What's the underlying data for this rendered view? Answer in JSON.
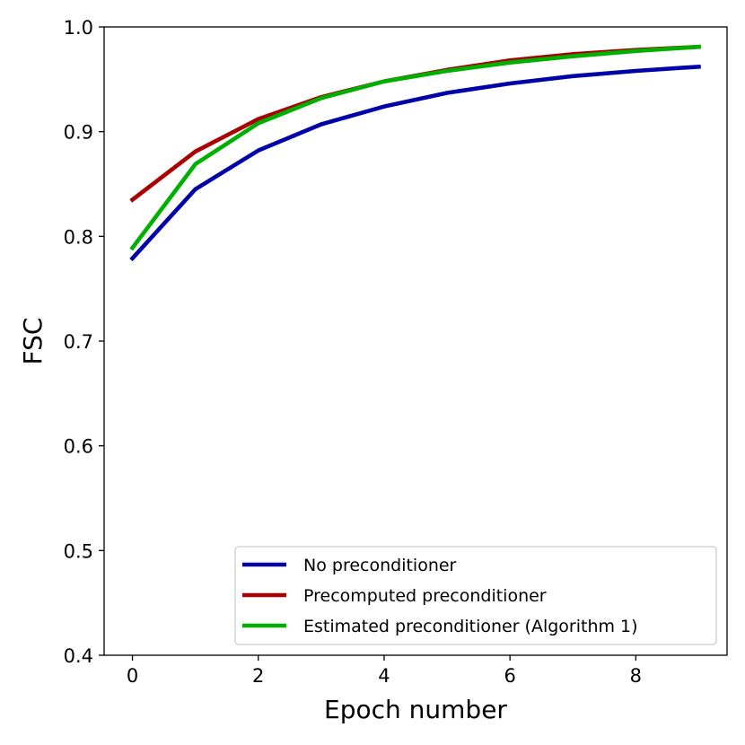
{
  "chart_data": {
    "type": "line",
    "title": "",
    "xlabel": "Epoch number",
    "ylabel": "FSC",
    "xlim": [
      -0.45,
      9.45
    ],
    "ylim": [
      0.4,
      1.0
    ],
    "xticks": [
      0,
      2,
      4,
      6,
      8
    ],
    "xtick_labels": [
      "0",
      "2",
      "4",
      "6",
      "8"
    ],
    "yticks": [
      0.4,
      0.5,
      0.6,
      0.7,
      0.8,
      0.9,
      1.0
    ],
    "ytick_labels": [
      "0.4",
      "0.5",
      "0.6",
      "0.7",
      "0.8",
      "0.9",
      "1.0"
    ],
    "grid": false,
    "legend_position": "bottom-right",
    "x": [
      0,
      1,
      2,
      3,
      4,
      5,
      6,
      7,
      8,
      9
    ],
    "series": [
      {
        "name": "No preconditioner",
        "color": "#0000aa",
        "values": [
          0.779,
          0.845,
          0.882,
          0.907,
          0.924,
          0.937,
          0.946,
          0.953,
          0.958,
          0.962
        ]
      },
      {
        "name": "Precomputed preconditioner",
        "color": "#aa0000",
        "values": [
          0.835,
          0.881,
          0.912,
          0.933,
          0.948,
          0.959,
          0.968,
          0.974,
          0.978,
          0.981
        ]
      },
      {
        "name": "Estimated preconditioner (Algorithm 1)",
        "color": "#00b000",
        "values": [
          0.789,
          0.869,
          0.908,
          0.932,
          0.948,
          0.958,
          0.966,
          0.972,
          0.977,
          0.981
        ]
      }
    ]
  }
}
